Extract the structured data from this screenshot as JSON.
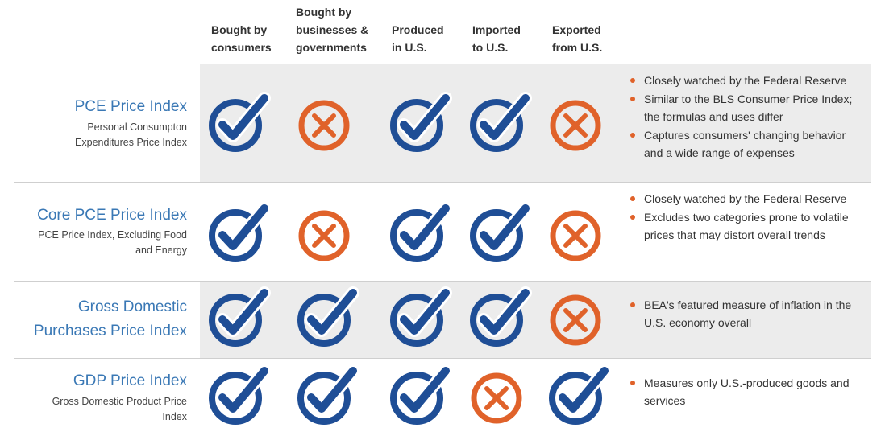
{
  "columns": [
    "Bought by consumers",
    "Bought by businesses & governments",
    "Produced in U.S.",
    "Imported to U.S.",
    "Exported from U.S."
  ],
  "column_lines": [
    [
      "Bought by",
      "consumers"
    ],
    [
      "Bought by",
      "businesses &",
      "governments"
    ],
    [
      "Produced",
      "in U.S."
    ],
    [
      "Imported",
      "to U.S."
    ],
    [
      "Exported",
      "from U.S."
    ]
  ],
  "colors": {
    "check": "#1f4e96",
    "cross": "#e0622a",
    "title": "#3a78b5",
    "shade": "#ececec"
  },
  "rows": [
    {
      "title": "PCE Price Index",
      "subtitle": "Personal Consumpton Expenditures Price Index",
      "marks": [
        "check",
        "cross",
        "check",
        "check",
        "cross"
      ],
      "notes": [
        "Closely watched by the Federal Reserve",
        "Similar to the BLS Consumer Price Index; the formulas and uses differ",
        "Captures consumers' changing behavior and a wide range of expenses"
      ]
    },
    {
      "title": "Core PCE Price Index",
      "subtitle": "PCE Price Index, Excluding Food and Energy",
      "marks": [
        "check",
        "cross",
        "check",
        "check",
        "cross"
      ],
      "notes": [
        "Closely watched by the Federal Reserve",
        "Excludes two categories prone to volatile prices that may distort overall trends"
      ]
    },
    {
      "title": "Gross Domestic Purchases Price Index",
      "subtitle": "",
      "marks": [
        "check",
        "check",
        "check",
        "check",
        "cross"
      ],
      "notes": [
        "BEA's featured measure of inflation in the U.S. economy overall"
      ]
    },
    {
      "title": "GDP Price Index",
      "subtitle": "Gross Domestic Product Price Index",
      "marks": [
        "check",
        "check",
        "check",
        "cross",
        "check"
      ],
      "notes": [
        "Measures only U.S.-produced goods and services"
      ]
    }
  ]
}
